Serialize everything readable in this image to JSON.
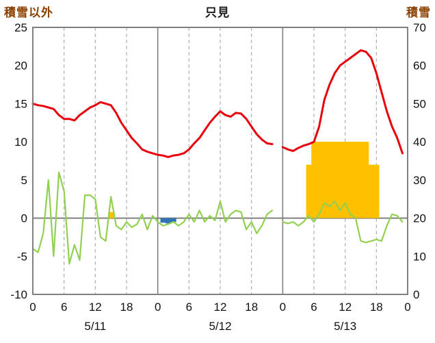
{
  "header": {
    "left_axis_label": "積雪以外",
    "title": "只見",
    "right_axis_label": "積雪"
  },
  "chart_data": {
    "type": "line",
    "title": "只見",
    "x_hour_ticks": [
      "0",
      "6",
      "12",
      "18",
      "0",
      "6",
      "12",
      "18",
      "0",
      "6",
      "12",
      "18",
      "0"
    ],
    "dates": [
      "5/11",
      "5/12",
      "5/13"
    ],
    "hours_total": 72,
    "left_axis": {
      "label": "積雪以外",
      "min": -10,
      "max": 25,
      "ticks": [
        25,
        20,
        15,
        10,
        5,
        0,
        -5,
        -10
      ]
    },
    "right_axis": {
      "label": "積雪",
      "min": 0,
      "max": 70,
      "ticks": [
        70,
        60,
        50,
        40,
        30,
        20,
        10,
        0
      ]
    },
    "grid": {
      "vertical_every_hours": 6,
      "day_boundaries_hours": [
        24,
        48
      ],
      "zero_line": true
    },
    "series": [
      {
        "name": "red-line",
        "type": "line",
        "color": "#e8000b",
        "width": 3,
        "axis": "left",
        "values": [
          15,
          14.8,
          14.7,
          14.5,
          14.3,
          13.5,
          13,
          13,
          12.8,
          13.5,
          14,
          14.5,
          14.8,
          15.2,
          15,
          14.8,
          13.8,
          12.5,
          11.5,
          10.5,
          9.8,
          9,
          8.7,
          8.5,
          8.3,
          8.2,
          8,
          8.2,
          8.3,
          8.5,
          9,
          9.8,
          10.5,
          11.5,
          12.5,
          13.3,
          14,
          13.5,
          13.3,
          13.8,
          13.7,
          13,
          12,
          11,
          10.3,
          9.8,
          9.7,
          null,
          9.3,
          9,
          8.8,
          9.2,
          9.5,
          9.7,
          10,
          12,
          15.5,
          17.5,
          19,
          20,
          20.5,
          21,
          21.5,
          22,
          21.8,
          21,
          19,
          16.5,
          14,
          12,
          10.5,
          8.5
        ]
      },
      {
        "name": "green-line",
        "type": "line",
        "color": "#92d050",
        "width": 2.2,
        "axis": "left",
        "values": [
          -4,
          -4.5,
          -2,
          5,
          -5,
          6,
          3.5,
          -6,
          -3.5,
          -5.5,
          3,
          3,
          2.5,
          -2.5,
          -3,
          2.8,
          -1,
          -1.5,
          -0.5,
          -1.2,
          -0.8,
          0.5,
          -1.5,
          0.3,
          -0.5,
          -1,
          -0.8,
          -0.5,
          -1,
          -0.5,
          0.5,
          -0.5,
          1,
          -0.5,
          0.3,
          -0.3,
          2.2,
          -0.5,
          0.5,
          1,
          0.8,
          -1.5,
          -0.5,
          -2,
          -1,
          0.5,
          1,
          null,
          -0.5,
          -0.7,
          -0.5,
          -1,
          -0.5,
          0.3,
          -0.5,
          0.5,
          2,
          1.5,
          2.2,
          1,
          2,
          0.5,
          0,
          -3,
          -3.2,
          -3,
          -2.8,
          -3,
          -1,
          0.5,
          0.3,
          -0.5
        ]
      },
      {
        "name": "orange-bars",
        "type": "bar",
        "color": "#ffc000",
        "axis": "left",
        "values": [
          0,
          0,
          0,
          0,
          0,
          0,
          0,
          0,
          0,
          0,
          0,
          0,
          0,
          0,
          0,
          0.8,
          0,
          0,
          0,
          0,
          0,
          0,
          0,
          0,
          0,
          0,
          0,
          0,
          0,
          0,
          0,
          0,
          0,
          0,
          0,
          0,
          0,
          0,
          0,
          0,
          0,
          0,
          0,
          0,
          0,
          0,
          0,
          0,
          0,
          0,
          0,
          0,
          0,
          7,
          10,
          10,
          10,
          10,
          10,
          10,
          10,
          10,
          10,
          10,
          10,
          7,
          7,
          0,
          0,
          0,
          0,
          0
        ]
      },
      {
        "name": "blue-bars",
        "type": "bar",
        "color": "#2e74b5",
        "axis": "left",
        "values": [
          0,
          0,
          0,
          0,
          0,
          0,
          0,
          0,
          0,
          0,
          0,
          0,
          0,
          0,
          0,
          0,
          0,
          0,
          0,
          0,
          0,
          0,
          0,
          0,
          0,
          -0.6,
          -0.7,
          -0.5,
          0,
          0,
          0,
          0,
          0,
          0,
          0,
          0,
          0,
          0,
          0,
          0,
          0,
          0,
          0,
          0,
          0,
          0,
          0,
          0,
          0,
          0,
          0,
          0,
          0,
          0,
          0,
          0,
          0,
          0,
          0,
          0,
          0,
          0,
          0,
          0,
          0,
          0,
          0,
          0,
          0,
          0,
          0,
          0
        ]
      }
    ]
  },
  "colors": {
    "border": "#808080",
    "grid": "#b0b0b0",
    "zero_line": "#808080",
    "axis_title": "#8b4000",
    "tick_text": "#111111"
  }
}
